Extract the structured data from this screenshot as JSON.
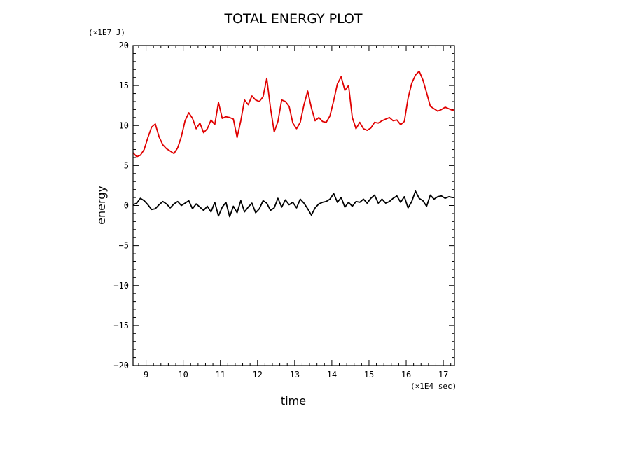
{
  "chart_data": {
    "type": "line",
    "title": "TOTAL ENERGY PLOT",
    "xlabel": "time",
    "ylabel": "energy",
    "x_unit": "(×1E4 sec)",
    "y_unit": "(×1E7 J)",
    "xlim": [
      8.65,
      17.3
    ],
    "ylim": [
      -20,
      20
    ],
    "xticks": [
      "9",
      "10",
      "11",
      "12",
      "13",
      "14",
      "15",
      "16",
      "17"
    ],
    "yticks": [
      "20",
      "15",
      "10",
      "5",
      "0",
      "−5",
      "−10",
      "−15",
      "−20"
    ],
    "grid": false,
    "series": [
      {
        "color": "#e00000",
        "x": [
          8.65,
          8.75,
          8.85,
          8.95,
          9.05,
          9.15,
          9.25,
          9.35,
          9.45,
          9.55,
          9.65,
          9.75,
          9.85,
          9.95,
          10.05,
          10.15,
          10.25,
          10.35,
          10.45,
          10.55,
          10.65,
          10.75,
          10.85,
          10.95,
          11.05,
          11.15,
          11.25,
          11.35,
          11.45,
          11.55,
          11.65,
          11.75,
          11.85,
          11.95,
          12.05,
          12.15,
          12.25,
          12.35,
          12.45,
          12.55,
          12.65,
          12.75,
          12.85,
          12.95,
          13.05,
          13.15,
          13.25,
          13.35,
          13.45,
          13.55,
          13.65,
          13.75,
          13.85,
          13.95,
          14.05,
          14.15,
          14.25,
          14.35,
          14.45,
          14.55,
          14.65,
          14.75,
          14.85,
          14.95,
          15.05,
          15.15,
          15.25,
          15.35,
          15.45,
          15.55,
          15.65,
          15.75,
          15.85,
          15.95,
          16.05,
          16.15,
          16.25,
          16.35,
          16.45,
          16.55,
          16.65,
          16.75,
          16.85,
          16.95,
          17.05,
          17.15,
          17.25,
          17.3
        ],
        "y": [
          6.6,
          6.1,
          6.3,
          7.0,
          8.5,
          9.8,
          10.2,
          8.6,
          7.6,
          7.1,
          6.8,
          6.5,
          7.2,
          8.6,
          10.6,
          11.6,
          10.9,
          9.6,
          10.3,
          9.1,
          9.6,
          10.7,
          10.1,
          12.9,
          10.9,
          11.1,
          11.0,
          10.8,
          8.5,
          10.6,
          13.2,
          12.6,
          13.7,
          13.2,
          13.0,
          13.6,
          15.9,
          12.2,
          9.2,
          10.5,
          13.2,
          13.0,
          12.4,
          10.3,
          9.6,
          10.4,
          12.6,
          14.3,
          12.2,
          10.6,
          11.0,
          10.5,
          10.4,
          11.2,
          13.1,
          15.2,
          16.1,
          14.4,
          15.0,
          11.0,
          9.6,
          10.4,
          9.6,
          9.4,
          9.7,
          10.4,
          10.3,
          10.6,
          10.8,
          11.0,
          10.6,
          10.7,
          10.1,
          10.5,
          13.4,
          15.3,
          16.3,
          16.8,
          15.7,
          14.1,
          12.4,
          12.1,
          11.8,
          12.0,
          12.3,
          12.1,
          11.9,
          12.0
        ]
      },
      {
        "color": "#000000",
        "x": [
          8.65,
          8.75,
          8.85,
          8.95,
          9.05,
          9.15,
          9.25,
          9.35,
          9.45,
          9.55,
          9.65,
          9.75,
          9.85,
          9.95,
          10.05,
          10.15,
          10.25,
          10.35,
          10.45,
          10.55,
          10.65,
          10.75,
          10.85,
          10.95,
          11.05,
          11.15,
          11.25,
          11.35,
          11.45,
          11.55,
          11.65,
          11.75,
          11.85,
          11.95,
          12.05,
          12.15,
          12.25,
          12.35,
          12.45,
          12.55,
          12.65,
          12.75,
          12.85,
          12.95,
          13.05,
          13.15,
          13.25,
          13.35,
          13.45,
          13.55,
          13.65,
          13.75,
          13.85,
          13.95,
          14.05,
          14.15,
          14.25,
          14.35,
          14.45,
          14.55,
          14.65,
          14.75,
          14.85,
          14.95,
          15.05,
          15.15,
          15.25,
          15.35,
          15.45,
          15.55,
          15.65,
          15.75,
          15.85,
          15.95,
          16.05,
          16.15,
          16.25,
          16.35,
          16.45,
          16.55,
          16.65,
          16.75,
          16.85,
          16.95,
          17.05,
          17.15,
          17.25,
          17.3
        ],
        "y": [
          0.1,
          0.3,
          0.9,
          0.6,
          0.1,
          -0.5,
          -0.4,
          0.1,
          0.5,
          0.2,
          -0.3,
          0.2,
          0.5,
          0.0,
          0.3,
          0.6,
          -0.4,
          0.2,
          -0.2,
          -0.6,
          -0.1,
          -0.8,
          0.4,
          -1.3,
          -0.2,
          0.4,
          -1.4,
          -0.1,
          -0.9,
          0.6,
          -0.8,
          -0.2,
          0.3,
          -0.9,
          -0.4,
          0.6,
          0.3,
          -0.6,
          -0.3,
          0.9,
          -0.2,
          0.7,
          0.1,
          0.4,
          -0.3,
          0.8,
          0.3,
          -0.4,
          -1.2,
          -0.3,
          0.2,
          0.4,
          0.5,
          0.8,
          1.5,
          0.4,
          1.0,
          -0.2,
          0.4,
          -0.1,
          0.5,
          0.4,
          0.8,
          0.3,
          0.9,
          1.3,
          0.3,
          0.8,
          0.3,
          0.5,
          0.9,
          1.2,
          0.4,
          1.1,
          -0.3,
          0.5,
          1.8,
          0.9,
          0.6,
          -0.1,
          1.3,
          0.8,
          1.1,
          1.2,
          0.9,
          1.1,
          1.0,
          1.0
        ]
      }
    ]
  }
}
